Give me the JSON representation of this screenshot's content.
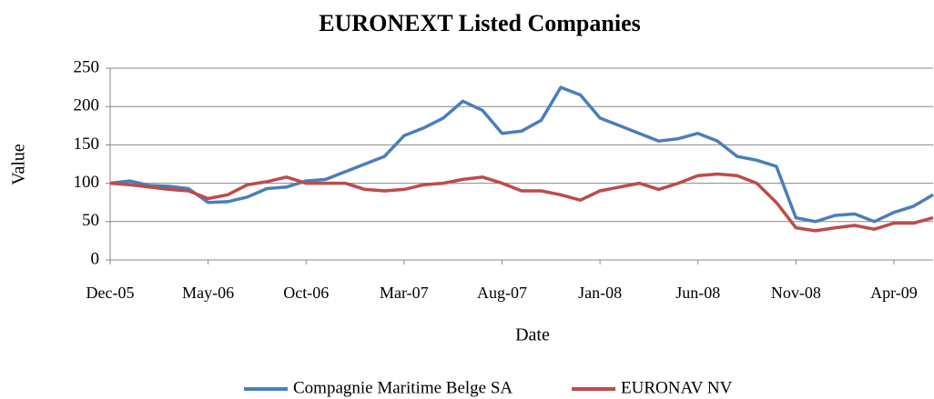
{
  "chart_data": {
    "type": "line",
    "title": "EURONEXT Listed Companies",
    "x_label": "Date",
    "y_label": "Value",
    "categories": [
      "Dec-05",
      null,
      null,
      null,
      null,
      "May-06",
      null,
      null,
      null,
      null,
      "Oct-06",
      null,
      null,
      null,
      null,
      "Mar-07",
      null,
      null,
      null,
      null,
      "Aug-07",
      null,
      null,
      null,
      null,
      "Jan-08",
      null,
      null,
      null,
      null,
      "Jun-08",
      null,
      null,
      null,
      null,
      "Nov-08",
      null,
      null,
      null,
      null,
      "Apr-09",
      null,
      null
    ],
    "series": [
      {
        "name": "Compagnie Maritime Belge SA",
        "color": "#4a7ebb",
        "values": [
          100,
          103,
          97,
          96,
          93,
          75,
          76,
          82,
          93,
          95,
          103,
          105,
          115,
          125,
          135,
          162,
          172,
          185,
          207,
          195,
          165,
          168,
          182,
          225,
          215,
          185,
          175,
          165,
          155,
          158,
          165,
          155,
          135,
          130,
          122,
          55,
          50,
          58,
          60,
          50,
          62,
          70,
          85
        ]
      },
      {
        "name": "EURONAV NV",
        "color": "#be4b48",
        "values": [
          100,
          98,
          95,
          92,
          90,
          80,
          85,
          98,
          102,
          108,
          100,
          100,
          100,
          92,
          90,
          92,
          98,
          100,
          105,
          108,
          100,
          90,
          90,
          85,
          78,
          90,
          95,
          100,
          92,
          100,
          110,
          112,
          110,
          100,
          75,
          42,
          38,
          42,
          45,
          40,
          48,
          48,
          55
        ]
      }
    ],
    "ylim": [
      0,
      250
    ],
    "yticks": [
      0,
      50,
      100,
      150,
      200,
      250
    ],
    "grid": true,
    "legend": "bottom"
  }
}
